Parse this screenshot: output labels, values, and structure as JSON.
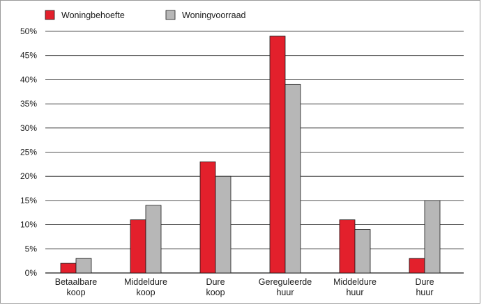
{
  "chart_data": {
    "type": "bar",
    "title": "",
    "xlabel": "",
    "ylabel": "",
    "ylim": [
      0,
      50
    ],
    "yticks": [
      0,
      5,
      10,
      15,
      20,
      25,
      30,
      35,
      40,
      45,
      50
    ],
    "ytick_labels": [
      "0%",
      "5%",
      "10%",
      "15%",
      "20%",
      "25%",
      "30%",
      "35%",
      "40%",
      "45%",
      "50%"
    ],
    "grid": true,
    "legend_position": "top-left",
    "categories": [
      [
        "Betaalbare",
        "koop"
      ],
      [
        "Middeldure",
        "koop"
      ],
      [
        "Dure",
        "koop"
      ],
      [
        "Gereguleerde",
        "huur"
      ],
      [
        "Middeldure",
        "huur"
      ],
      [
        "Dure",
        "huur"
      ]
    ],
    "series": [
      {
        "name": "Woningbehoefte",
        "color": "#e3202c",
        "values": [
          2,
          11,
          23,
          49,
          11,
          3
        ]
      },
      {
        "name": "Woningvoorraad",
        "color": "#b7b7b7",
        "values": [
          3,
          14,
          20,
          39,
          9,
          15
        ]
      }
    ]
  }
}
